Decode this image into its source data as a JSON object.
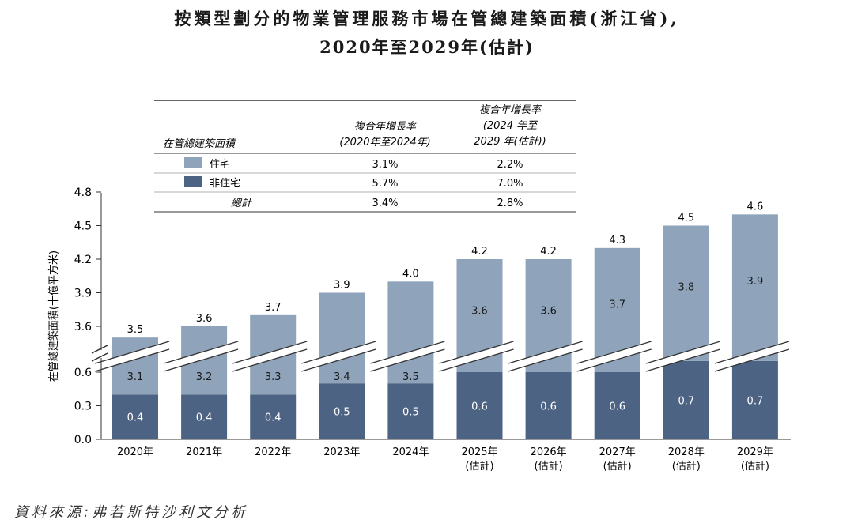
{
  "title_line1": "按類型劃分的物業管理服務市場在管總建築面積(浙江省),",
  "title_line2": "2020年至2029年(估計)",
  "source": "資料來源:弗若斯特沙利文分析",
  "colors": {
    "residential": "#8fa3bb",
    "non_residential": "#4d6383",
    "axis": "#333333"
  },
  "table": {
    "row_header": "在管總建築面積",
    "col1_header": [
      "複合年增長率",
      "(2020年至2024年)"
    ],
    "col2_header": [
      "複合年增長率",
      "(2024 年至",
      "2029 年(估計))"
    ],
    "rows": [
      {
        "label": "住宅",
        "swatch": "residential",
        "cagr1": "3.1%",
        "cagr2": "2.2%"
      },
      {
        "label": "非住宅",
        "swatch": "non_residential",
        "cagr1": "5.7%",
        "cagr2": "7.0%"
      },
      {
        "label": "總計",
        "swatch": null,
        "cagr1": "3.4%",
        "cagr2": "2.8%"
      }
    ]
  },
  "chart_data": {
    "type": "bar",
    "stacked": true,
    "broken_axis": true,
    "ylabel": "在管總建築面積(十億平方米)",
    "y_ticks_lower": [
      "0.0",
      "0.3",
      "0.6"
    ],
    "y_ticks_upper": [
      "3.6",
      "3.9",
      "4.2",
      "4.5",
      "4.8"
    ],
    "categories": [
      [
        "2020年"
      ],
      [
        "2021年"
      ],
      [
        "2022年"
      ],
      [
        "2023年"
      ],
      [
        "2024年"
      ],
      [
        "2025年",
        "(估計)"
      ],
      [
        "2026年",
        "(估計)"
      ],
      [
        "2027年",
        "(估計)"
      ],
      [
        "2028年",
        "(估計)"
      ],
      [
        "2029年",
        "(估計)"
      ]
    ],
    "series": [
      {
        "name": "非住宅",
        "values": [
          0.4,
          0.4,
          0.4,
          0.5,
          0.5,
          0.6,
          0.6,
          0.6,
          0.7,
          0.7
        ]
      },
      {
        "name": "住宅",
        "values": [
          3.1,
          3.2,
          3.3,
          3.4,
          3.5,
          3.6,
          3.6,
          3.7,
          3.8,
          3.9
        ]
      }
    ],
    "totals": [
      3.5,
      3.6,
      3.7,
      3.9,
      4.0,
      4.2,
      4.2,
      4.3,
      4.5,
      4.6
    ]
  }
}
